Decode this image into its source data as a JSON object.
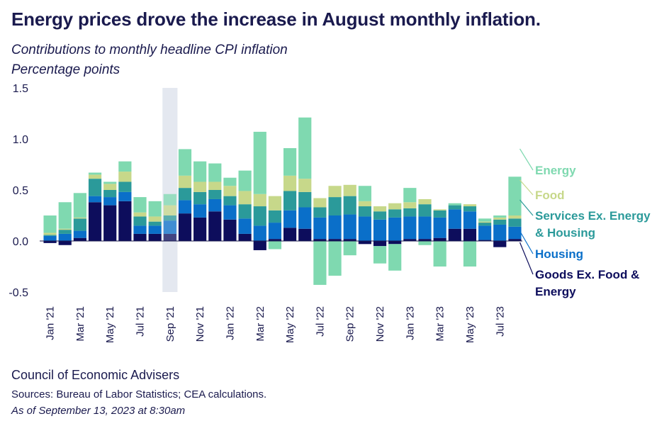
{
  "header": {
    "title": "Energy prices drove the increase in August monthly inflation.",
    "subtitle": "Contributions to monthly headline CPI inflation",
    "units": "Percentage points"
  },
  "footer": {
    "org": "Council of Economic Advisers",
    "sources": "Sources: Bureau of Labor Statistics; CEA calculations.",
    "date": "As of September 13, 2023 at 8:30am"
  },
  "colors": {
    "goods": "#0d0d5c",
    "housing": "#0a6fc9",
    "services": "#2b9a9a",
    "food": "#c7d88a",
    "energy": "#7fd9b0",
    "highlight": "#e4e8f0"
  },
  "chart_data": {
    "type": "bar",
    "stacked": true,
    "ylim": [
      -0.5,
      1.5
    ],
    "yticks": [
      "1.5",
      "1.0",
      "0.5",
      "0.0",
      "-0.5"
    ],
    "ytick_values": [
      1.5,
      1.0,
      0.5,
      0.0,
      -0.5
    ],
    "grid": false,
    "legend_placement": "right",
    "highlight_category": "Sep '21",
    "categories": [
      "Jan '21",
      "Feb '21",
      "Mar '21",
      "Apr '21",
      "May '21",
      "Jun '21",
      "Jul '21",
      "Aug '21",
      "Sep '21",
      "Oct '21",
      "Nov '21",
      "Dec '21",
      "Jan '22",
      "Feb '22",
      "Mar '22",
      "Apr '22",
      "May '22",
      "Jun '22",
      "Jul '22",
      "Aug '22",
      "Sep '22",
      "Oct '22",
      "Nov '22",
      "Dec '22",
      "Jan '23",
      "Feb '23",
      "Mar '23",
      "Apr '23",
      "May '23",
      "Jun '23",
      "Jul '23",
      "Aug '23"
    ],
    "x_tick_labels": [
      "Jan '21",
      "Mar '21",
      "May '21",
      "Jul '21",
      "Sep '21",
      "Nov '21",
      "Jan '22",
      "Mar '22",
      "May '22",
      "Jul '22",
      "Sep '22",
      "Nov '22",
      "Jan '23",
      "Mar '23",
      "May '23",
      "Jul '23"
    ],
    "series": [
      {
        "name": "Goods Ex. Food & Energy",
        "values": [
          -0.02,
          -0.04,
          0.03,
          0.38,
          0.35,
          0.39,
          0.07,
          0.07,
          0.07,
          0.27,
          0.23,
          0.29,
          0.21,
          0.07,
          -0.09,
          0.02,
          0.13,
          0.12,
          0.02,
          0.02,
          0.02,
          -0.03,
          -0.05,
          -0.03,
          0.02,
          0.02,
          0.03,
          0.12,
          0.12,
          0.01,
          -0.06,
          0.02
        ]
      },
      {
        "name": "Housing",
        "values": [
          0.05,
          0.07,
          0.07,
          0.06,
          0.08,
          0.09,
          0.08,
          0.08,
          0.13,
          0.13,
          0.13,
          0.12,
          0.14,
          0.15,
          0.15,
          0.16,
          0.17,
          0.21,
          0.21,
          0.23,
          0.24,
          0.24,
          0.21,
          0.23,
          0.22,
          0.22,
          0.2,
          0.19,
          0.17,
          0.14,
          0.16,
          0.12
        ]
      },
      {
        "name": "Services Ex. Energy & Housing",
        "values": [
          0.01,
          0.04,
          0.12,
          0.17,
          0.07,
          0.1,
          0.09,
          0.04,
          0.05,
          0.12,
          0.12,
          0.09,
          0.09,
          0.14,
          0.19,
          0.12,
          0.19,
          0.15,
          0.1,
          0.18,
          0.18,
          0.1,
          0.08,
          0.08,
          0.08,
          0.12,
          0.07,
          0.04,
          0.05,
          0.03,
          0.05,
          0.08
        ]
      },
      {
        "name": "Food",
        "values": [
          0.02,
          0.01,
          0.01,
          0.04,
          0.06,
          0.1,
          0.04,
          0.05,
          0.1,
          0.12,
          0.1,
          0.08,
          0.1,
          0.13,
          0.12,
          0.14,
          0.15,
          0.13,
          0.09,
          0.11,
          0.11,
          0.05,
          0.05,
          0.06,
          0.06,
          0.05,
          0.01,
          0.0,
          0.02,
          0.01,
          0.02,
          0.03
        ]
      },
      {
        "name": "Energy",
        "values": [
          0.17,
          0.26,
          0.24,
          0.02,
          0.02,
          0.1,
          0.15,
          0.15,
          0.11,
          0.26,
          0.2,
          0.18,
          0.08,
          0.2,
          0.61,
          -0.08,
          0.27,
          0.6,
          -0.43,
          -0.34,
          -0.14,
          0.15,
          -0.17,
          -0.26,
          0.14,
          -0.04,
          -0.25,
          0.02,
          -0.25,
          0.03,
          0.02,
          0.38
        ]
      }
    ]
  }
}
